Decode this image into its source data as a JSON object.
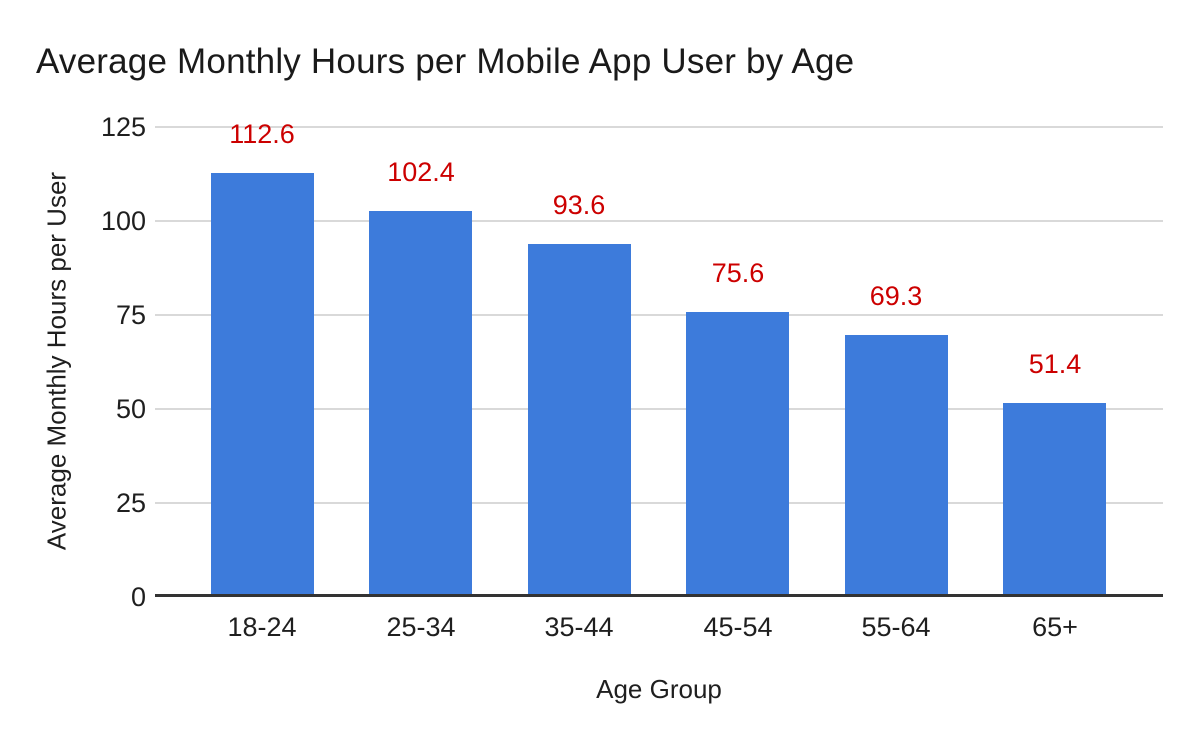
{
  "title": "Average Monthly Hours per Mobile App User by Age",
  "chart_data": {
    "type": "bar",
    "title": "Average Monthly Hours per Mobile App User by Age",
    "categories": [
      "18-24",
      "25-34",
      "35-44",
      "45-54",
      "55-64",
      "65+"
    ],
    "values": [
      112.6,
      102.4,
      93.6,
      75.6,
      69.3,
      51.4
    ],
    "xlabel": "Age Group",
    "ylabel": "Average Monthly Hours per User",
    "ylim": [
      0,
      125
    ],
    "yticks": [
      0,
      25,
      50,
      75,
      100,
      125
    ],
    "grid": true,
    "legend": false,
    "colors": {
      "bar": "#3D7BDB",
      "data_label": "#CC0000",
      "gridline": "#D9D9D9",
      "axis_line": "#333333",
      "text": "#1F1F1F"
    }
  }
}
